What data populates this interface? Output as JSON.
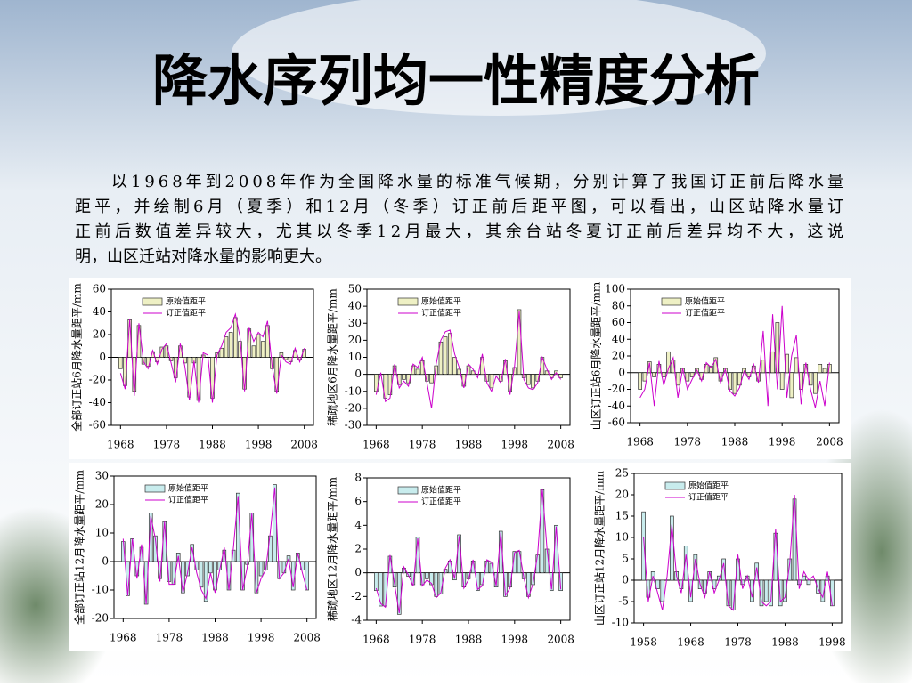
{
  "slide": {
    "title": "降水序列均一性精度分析",
    "paragraph": [
      "以1968年到2008年作为全国降水量的标准气候期，分别计算了我国订正前后降水量",
      "距平，并绘制6月（夏季）和12月（冬季）订正前后距平图，可以看出，山区站降水量订",
      "正前后数值差异较大，尤其以冬季12月最大，其余台站冬夏订正前后差异均不大，这说",
      "明，山区迁站对降水量的影响更大。"
    ]
  },
  "chart_data": [
    {
      "type": "bar_line",
      "y_label": "全部订正站6月降水量距平/mm",
      "legend": "upper left",
      "xlim": [
        1966,
        2010
      ],
      "xticks": [
        1968,
        1978,
        1988,
        1998,
        2008
      ],
      "ylim": [
        -60,
        60
      ],
      "yticks": [
        -60,
        -40,
        -20,
        0,
        20,
        40,
        60
      ],
      "x": [
        1968,
        1969,
        1970,
        1971,
        1972,
        1973,
        1974,
        1975,
        1976,
        1977,
        1978,
        1979,
        1980,
        1981,
        1982,
        1983,
        1984,
        1985,
        1986,
        1987,
        1988,
        1989,
        1990,
        1991,
        1992,
        1993,
        1994,
        1995,
        1996,
        1997,
        1998,
        1999,
        2000,
        2001,
        2002,
        2003,
        2004,
        2005,
        2006,
        2007,
        2008
      ],
      "series": [
        {
          "name": "原始值距平",
          "type": "bar",
          "color": "#eef0c4",
          "values": [
            -10,
            -25,
            33,
            -30,
            28,
            -6,
            -8,
            5,
            -4,
            9,
            10,
            -3,
            -18,
            10,
            -5,
            -35,
            -5,
            -38,
            2,
            0,
            -36,
            4,
            8,
            18,
            22,
            35,
            14,
            -28,
            25,
            10,
            20,
            14,
            28,
            -10,
            -30,
            4,
            -2,
            -4,
            6,
            -2,
            7
          ]
        },
        {
          "name": "订正值距平",
          "type": "line",
          "color": "#cc00cc",
          "values": [
            -14,
            -28,
            34,
            -34,
            30,
            -4,
            -10,
            6,
            -6,
            7,
            12,
            -5,
            -22,
            12,
            -8,
            -38,
            -3,
            -40,
            4,
            2,
            -40,
            2,
            10,
            22,
            26,
            38,
            18,
            -30,
            26,
            14,
            22,
            18,
            32,
            -8,
            -32,
            2,
            -4,
            -6,
            8,
            -4,
            8
          ]
        }
      ]
    },
    {
      "type": "bar_line",
      "y_label": "稀疏地区6月降水量距平/mm",
      "legend": "upper left",
      "xlim": [
        1966,
        2010
      ],
      "xticks": [
        1968,
        1978,
        1988,
        1998,
        2008
      ],
      "ylim": [
        -30,
        50
      ],
      "yticks": [
        -30,
        -20,
        -10,
        0,
        10,
        20,
        30,
        40,
        50
      ],
      "x": [
        1968,
        1969,
        1970,
        1971,
        1972,
        1973,
        1974,
        1975,
        1976,
        1977,
        1978,
        1979,
        1980,
        1981,
        1982,
        1983,
        1984,
        1985,
        1986,
        1987,
        1988,
        1989,
        1990,
        1991,
        1992,
        1993,
        1994,
        1995,
        1996,
        1997,
        1998,
        1999,
        2000,
        2001,
        2002,
        2003,
        2004,
        2005,
        2006,
        2007,
        2008
      ],
      "series": [
        {
          "name": "原始值距平",
          "type": "bar",
          "color": "#eef0c4",
          "values": [
            -10,
            0,
            -14,
            -12,
            5,
            -6,
            -3,
            -5,
            5,
            3,
            8,
            -4,
            -5,
            5,
            19,
            22,
            24,
            10,
            3,
            -7,
            5,
            2,
            0,
            10,
            -4,
            -8,
            0,
            -4,
            8,
            -10,
            4,
            38,
            -2,
            -6,
            -8,
            -4,
            10,
            2,
            -2,
            2,
            -2
          ]
        },
        {
          "name": "订正值距平",
          "type": "line",
          "color": "#cc00cc",
          "values": [
            -12,
            1,
            -16,
            -14,
            6,
            -8,
            -4,
            -7,
            6,
            4,
            10,
            -5,
            -20,
            6,
            20,
            25,
            26,
            12,
            4,
            -8,
            6,
            3,
            -2,
            12,
            -5,
            -10,
            -1,
            -5,
            9,
            -12,
            5,
            37,
            -3,
            -8,
            -9,
            -5,
            10,
            3,
            -3,
            1,
            -3
          ]
        }
      ]
    },
    {
      "type": "bar_line",
      "y_label": "山区订正站6月降水量距平/mm",
      "legend": "upper left",
      "xlim": [
        1966,
        2010
      ],
      "xticks": [
        1968,
        1978,
        1988,
        1998,
        2008
      ],
      "ylim": [
        -60,
        100
      ],
      "yticks": [
        -60,
        -40,
        -20,
        0,
        20,
        40,
        60,
        80,
        100
      ],
      "x": [
        1968,
        1969,
        1970,
        1971,
        1972,
        1973,
        1974,
        1975,
        1976,
        1977,
        1978,
        1979,
        1980,
        1981,
        1982,
        1983,
        1984,
        1985,
        1986,
        1987,
        1988,
        1989,
        1990,
        1991,
        1992,
        1993,
        1994,
        1995,
        1996,
        1997,
        1998,
        1999,
        2000,
        2001,
        2002,
        2003,
        2004,
        2005,
        2006,
        2007,
        2008
      ],
      "series": [
        {
          "name": "原始值距平",
          "type": "bar",
          "color": "#eef0c4",
          "values": [
            -20,
            -10,
            13,
            -5,
            10,
            -5,
            25,
            15,
            -15,
            5,
            -10,
            -5,
            5,
            -8,
            10,
            8,
            18,
            -10,
            5,
            -20,
            -25,
            -15,
            5,
            -5,
            8,
            -10,
            15,
            0,
            25,
            60,
            -20,
            22,
            -30,
            18,
            -20,
            10,
            -15,
            -25,
            10,
            5,
            10
          ]
        },
        {
          "name": "订正值距平",
          "type": "line",
          "color": "#cc00cc",
          "values": [
            -30,
            -20,
            12,
            -40,
            14,
            -15,
            5,
            18,
            -30,
            5,
            -20,
            -8,
            3,
            -10,
            12,
            6,
            16,
            -12,
            4,
            -22,
            -28,
            -18,
            2,
            -8,
            10,
            -12,
            50,
            -40,
            70,
            -20,
            80,
            -30,
            20,
            45,
            -38,
            12,
            -20,
            -42,
            -10,
            -40,
            12
          ]
        }
      ]
    },
    {
      "type": "bar_line",
      "y_label": "全部订正站12月降水量距平/mm",
      "legend": "upper left",
      "xlim": [
        1966,
        2010
      ],
      "xticks": [
        1968,
        1978,
        1988,
        1998,
        2008
      ],
      "ylim": [
        -20,
        30
      ],
      "yticks": [
        -20,
        -10,
        0,
        10,
        20,
        30
      ],
      "x": [
        1968,
        1969,
        1970,
        1971,
        1972,
        1973,
        1974,
        1975,
        1976,
        1977,
        1978,
        1979,
        1980,
        1981,
        1982,
        1983,
        1984,
        1985,
        1986,
        1987,
        1988,
        1989,
        1990,
        1991,
        1992,
        1993,
        1994,
        1995,
        1996,
        1997,
        1998,
        1999,
        2000,
        2001,
        2002,
        2003,
        2004,
        2005,
        2006,
        2007,
        2008
      ],
      "series": [
        {
          "name": "原始值距平",
          "type": "bar",
          "color": "#c8eced",
          "values": [
            7,
            -12,
            8,
            -5,
            5,
            -15,
            17,
            9,
            -6,
            14,
            -7,
            -8,
            3,
            -11,
            -5,
            6,
            -3,
            -9,
            -14,
            -4,
            -10,
            -3,
            4,
            -10,
            4,
            24,
            -10,
            -1,
            17,
            -11,
            -5,
            -3,
            9,
            27,
            -6,
            -4,
            2,
            -10,
            3,
            -3,
            -10
          ]
        },
        {
          "name": "订正值距平",
          "type": "line",
          "color": "#cc00cc",
          "values": [
            8,
            -12,
            8,
            -6,
            6,
            -15,
            16,
            8,
            -7,
            14,
            -8,
            -8,
            2,
            -11,
            -4,
            5,
            -4,
            -10,
            -13,
            -4,
            -11,
            -3,
            5,
            -10,
            5,
            23,
            -10,
            -2,
            17,
            -11,
            -6,
            -3,
            10,
            26,
            -6,
            -4,
            1,
            -9,
            3,
            -4,
            -10
          ]
        }
      ]
    },
    {
      "type": "bar_line",
      "y_label": "稀疏地区12月降水量距平/mm",
      "legend": "upper left",
      "xlim": [
        1966,
        2010
      ],
      "xticks": [
        1968,
        1978,
        1988,
        1998,
        2008
      ],
      "ylim": [
        -4,
        8
      ],
      "yticks": [
        -4,
        -2,
        0,
        2,
        4,
        6,
        8
      ],
      "x": [
        1968,
        1969,
        1970,
        1971,
        1972,
        1973,
        1974,
        1975,
        1976,
        1977,
        1978,
        1979,
        1980,
        1981,
        1982,
        1983,
        1984,
        1985,
        1986,
        1987,
        1988,
        1989,
        1990,
        1991,
        1992,
        1993,
        1994,
        1995,
        1996,
        1997,
        1998,
        1999,
        2000,
        2001,
        2002,
        2003,
        2004,
        2005,
        2006,
        2007,
        2008
      ],
      "series": [
        {
          "name": "原始值距平",
          "type": "bar",
          "color": "#c8eced",
          "values": [
            -1.5,
            -2.8,
            -2.8,
            1.4,
            -1.2,
            -3.5,
            0.4,
            -0.3,
            -1,
            3,
            -1,
            -0.5,
            -1,
            -2,
            -1.8,
            0.3,
            1,
            -0.6,
            3.2,
            -1.2,
            -0.5,
            1,
            -1.5,
            -1,
            1,
            0.8,
            -1.2,
            3.5,
            -2,
            -1.2,
            1.8,
            1.8,
            -0.5,
            -2,
            -1,
            1.5,
            7,
            2,
            -1.5,
            4,
            -1.5
          ]
        },
        {
          "name": "订正值距平",
          "type": "line",
          "color": "#cc00cc",
          "values": [
            -1.3,
            -2.6,
            -2.9,
            1.5,
            -1,
            -3.4,
            0.5,
            -0.2,
            -1.1,
            2.9,
            -1.1,
            -0.6,
            -0.9,
            -2.1,
            -1.7,
            0.4,
            1.1,
            -0.5,
            3.1,
            -1.3,
            -0.6,
            1.1,
            -1.4,
            -1.1,
            1.1,
            0.9,
            -1.1,
            3.4,
            -1.9,
            -1.3,
            1.7,
            1.9,
            -0.4,
            -2.1,
            -0.9,
            1.6,
            7.1,
            2.1,
            -1.4,
            3.9,
            -1.4
          ]
        }
      ]
    },
    {
      "type": "bar_line",
      "y_label": "山区订正站12月降水量距平/mm",
      "legend": "upper left",
      "xlim": [
        1956,
        2000
      ],
      "xticks": [
        1958,
        1968,
        1978,
        1988,
        1998
      ],
      "ylim": [
        -10,
        25
      ],
      "yticks": [
        -10,
        -5,
        0,
        5,
        10,
        15,
        20,
        25
      ],
      "x": [
        1958,
        1959,
        1960,
        1961,
        1962,
        1963,
        1964,
        1965,
        1966,
        1967,
        1968,
        1969,
        1970,
        1971,
        1972,
        1973,
        1974,
        1975,
        1976,
        1977,
        1978,
        1979,
        1980,
        1981,
        1982,
        1983,
        1984,
        1985,
        1986,
        1987,
        1988,
        1989,
        1990,
        1991,
        1992,
        1993,
        1994,
        1995,
        1996,
        1997,
        1998
      ],
      "series": [
        {
          "name": "原始值距平",
          "type": "bar",
          "color": "#c8eced",
          "values": [
            16,
            -4,
            2,
            -2,
            -5,
            0,
            15,
            2,
            -2,
            8,
            -5,
            6,
            -2,
            -3,
            2,
            -2,
            1,
            5,
            -6,
            -7,
            5,
            -1,
            1,
            -5,
            4,
            -6,
            -5,
            -6,
            11,
            -6,
            -5,
            5,
            19,
            -1,
            1,
            -1,
            0,
            -3,
            -5,
            1,
            -6
          ]
        },
        {
          "name": "订正值距平",
          "type": "line",
          "color": "#cc00cc",
          "values": [
            10,
            -5,
            1,
            -3,
            -7,
            1,
            13,
            1,
            -3,
            6,
            -4,
            5,
            -1,
            -4,
            2,
            -3,
            0,
            4,
            -6,
            -7,
            6,
            -2,
            1,
            -4,
            3,
            -5,
            -6,
            -5,
            12,
            -5,
            -4,
            4,
            20,
            -2,
            2,
            0,
            1,
            -2,
            -4,
            2,
            -6
          ]
        }
      ]
    }
  ]
}
